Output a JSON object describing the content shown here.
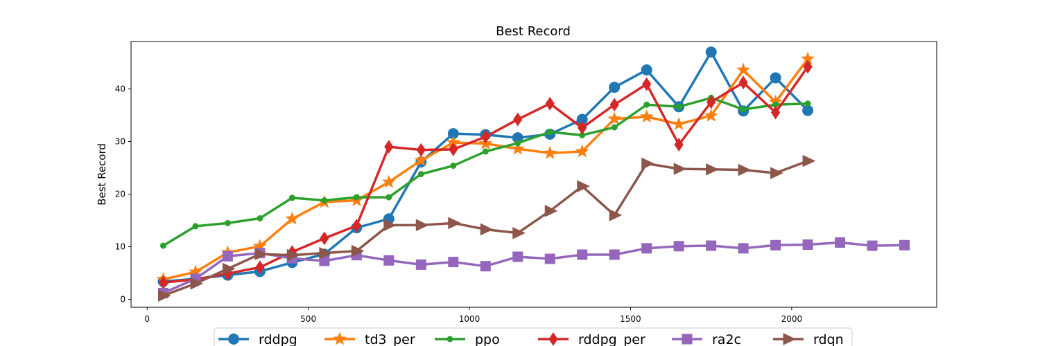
{
  "chart_data": {
    "type": "line",
    "title": "Best Record",
    "xlabel": "",
    "ylabel": "Best Record",
    "xlim": [
      -50,
      2450
    ],
    "ylim": [
      -1.5,
      49
    ],
    "xticks": [
      0,
      500,
      1000,
      1500,
      2000
    ],
    "yticks": [
      0,
      10,
      20,
      30,
      40
    ],
    "grid": false,
    "legend_position": "bottom-center",
    "series": [
      {
        "name": "rddpg",
        "color": "#1f77b4",
        "marker": "circle",
        "x": [
          50,
          150,
          250,
          350,
          450,
          550,
          650,
          750,
          850,
          950,
          1050,
          1150,
          1250,
          1350,
          1450,
          1550,
          1650,
          1750,
          1850,
          1950,
          2050
        ],
        "y": [
          3.4,
          3.9,
          4.6,
          5.3,
          7.0,
          8.6,
          13.6,
          15.3,
          26.1,
          31.5,
          31.3,
          30.7,
          31.4,
          34.2,
          40.3,
          43.6,
          36.6,
          47.0,
          35.8,
          42.1,
          35.9
        ]
      },
      {
        "name": "td3_per",
        "color": "#ff7f0e",
        "marker": "star",
        "x": [
          50,
          150,
          250,
          350,
          450,
          550,
          650,
          750,
          850,
          950,
          1050,
          1150,
          1250,
          1350,
          1450,
          1550,
          1650,
          1750,
          1850,
          1950,
          2050
        ],
        "y": [
          3.8,
          5.2,
          8.9,
          10.1,
          15.3,
          18.5,
          18.8,
          22.3,
          26.4,
          29.8,
          29.6,
          28.6,
          27.8,
          28.1,
          34.3,
          34.7,
          33.3,
          34.9,
          43.6,
          37.5,
          45.7
        ]
      },
      {
        "name": "ppo",
        "color": "#2ca02c",
        "marker": "dot",
        "x": [
          50,
          150,
          250,
          350,
          450,
          550,
          650,
          750,
          850,
          950,
          1050,
          1150,
          1250,
          1350,
          1450,
          1550,
          1650,
          1750,
          1850,
          1950,
          2050
        ],
        "y": [
          10.2,
          13.9,
          14.5,
          15.4,
          19.3,
          18.8,
          19.4,
          19.4,
          23.8,
          25.4,
          28.1,
          29.7,
          31.8,
          31.2,
          32.7,
          37.0,
          36.6,
          38.3,
          36.1,
          37.0,
          37.2
        ]
      },
      {
        "name": "rddpg_per",
        "color": "#d62728",
        "marker": "diamond",
        "x": [
          50,
          150,
          250,
          350,
          450,
          550,
          650,
          750,
          850,
          950,
          1050,
          1150,
          1250,
          1350,
          1450,
          1550,
          1650,
          1750,
          1850,
          1950,
          2050
        ],
        "y": [
          3.2,
          3.8,
          4.9,
          6.1,
          9.0,
          11.6,
          14.0,
          29.0,
          28.4,
          28.5,
          30.9,
          34.2,
          37.2,
          32.6,
          37.0,
          40.9,
          29.4,
          37.5,
          41.2,
          35.5,
          44.2
        ]
      },
      {
        "name": "ra2c",
        "color": "#9467bd",
        "marker": "square",
        "x": [
          50,
          150,
          250,
          350,
          450,
          550,
          650,
          750,
          850,
          950,
          1050,
          1150,
          1250,
          1350,
          1450,
          1550,
          1650,
          1750,
          1850,
          1950,
          2050,
          2150,
          2250,
          2350
        ],
        "y": [
          1.2,
          3.9,
          8.2,
          8.8,
          7.8,
          7.3,
          8.4,
          7.4,
          6.6,
          7.1,
          6.3,
          8.1,
          7.7,
          8.5,
          8.5,
          9.7,
          10.1,
          10.2,
          9.7,
          10.3,
          10.4,
          10.8,
          10.2,
          10.3
        ]
      },
      {
        "name": "rdqn",
        "color": "#8c564b",
        "marker": "triangle-right",
        "x": [
          50,
          150,
          250,
          350,
          450,
          550,
          650,
          750,
          850,
          950,
          1050,
          1150,
          1250,
          1350,
          1450,
          1550,
          1650,
          1750,
          1850,
          1950,
          2050
        ],
        "y": [
          0.7,
          3.0,
          5.8,
          8.6,
          8.4,
          8.8,
          9.2,
          14.1,
          14.1,
          14.5,
          13.3,
          12.6,
          16.8,
          21.5,
          16.0,
          25.8,
          24.8,
          24.7,
          24.6,
          24.0,
          26.3
        ]
      }
    ]
  }
}
